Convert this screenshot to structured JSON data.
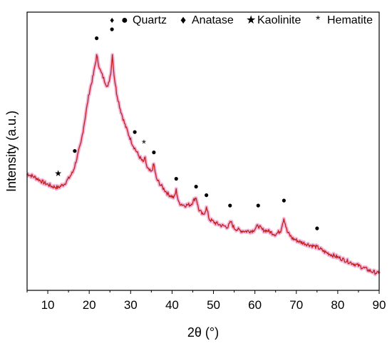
{
  "chart_data": {
    "type": "line",
    "title": "",
    "xlabel": "2θ (°)",
    "ylabel": "Intensity (a.u.)",
    "xlim": [
      5,
      90
    ],
    "ylim": [
      0,
      100
    ],
    "xticks": [
      "10",
      "20",
      "30",
      "40",
      "50",
      "60",
      "70",
      "80",
      "90"
    ],
    "yticks_shown": false,
    "grid": false,
    "series": [
      {
        "points": [
          [
            5,
            41
          ],
          [
            7,
            39.5
          ],
          [
            9,
            37.5
          ],
          [
            11,
            36
          ],
          [
            12.5,
            35.5
          ],
          [
            14,
            37
          ],
          [
            15,
            39
          ],
          [
            16,
            41.5
          ],
          [
            16.5,
            44
          ],
          [
            17,
            47
          ],
          [
            18,
            53
          ],
          [
            19,
            63
          ],
          [
            20,
            73
          ],
          [
            21,
            80
          ],
          [
            21.8,
            87.5
          ],
          [
            22.6,
            82
          ],
          [
            23.5,
            78.5
          ],
          [
            24.5,
            75
          ],
          [
            25.2,
            81
          ],
          [
            25.6,
            88
          ],
          [
            26.0,
            80
          ],
          [
            26.6,
            73
          ],
          [
            27.5,
            66.5
          ],
          [
            28.5,
            61
          ],
          [
            29.5,
            56.5
          ],
          [
            30.5,
            52.5
          ],
          [
            31,
            51
          ],
          [
            32,
            48
          ],
          [
            33,
            45.5
          ],
          [
            33.5,
            47
          ],
          [
            34,
            43
          ],
          [
            35,
            41.5
          ],
          [
            35.6,
            44.8
          ],
          [
            36.2,
            39
          ],
          [
            37.5,
            36
          ],
          [
            39,
            33
          ],
          [
            40.5,
            31.5
          ],
          [
            41,
            34.5
          ],
          [
            41.6,
            29.5
          ],
          [
            43,
            28.5
          ],
          [
            44.5,
            28.8
          ],
          [
            45.8,
            31.7
          ],
          [
            46.4,
            27
          ],
          [
            47.5,
            24.5
          ],
          [
            48.3,
            27.5
          ],
          [
            49,
            23
          ],
          [
            50.5,
            21.5
          ],
          [
            52,
            20.5
          ],
          [
            53.5,
            20
          ],
          [
            54.2,
            22
          ],
          [
            55,
            19.5
          ],
          [
            56.5,
            18.5
          ],
          [
            58,
            18.3
          ],
          [
            59.5,
            18.5
          ],
          [
            60.8,
            20.5
          ],
          [
            61.8,
            18.8
          ],
          [
            63,
            18.5
          ],
          [
            65,
            17
          ],
          [
            66.2,
            18.5
          ],
          [
            67,
            23.5
          ],
          [
            67.8,
            18
          ],
          [
            69,
            15.5
          ],
          [
            71,
            14
          ],
          [
            73,
            13
          ],
          [
            75,
            12
          ],
          [
            77,
            10
          ],
          [
            80,
            8
          ],
          [
            83,
            6
          ],
          [
            86,
            4
          ],
          [
            88,
            2.5
          ],
          [
            90,
            1.5
          ]
        ]
      }
    ],
    "markers": [
      {
        "phase": "Quartz",
        "symbol": "●",
        "x": 16.5,
        "y": 49
      },
      {
        "phase": "Quartz",
        "symbol": "●",
        "x": 21.8,
        "y": 93.5
      },
      {
        "phase": "Quartz",
        "symbol": "●",
        "x": 25.5,
        "y": 97
      },
      {
        "phase": "Anatase",
        "symbol": "♦",
        "x": 25.5,
        "y": 100.5
      },
      {
        "phase": "Quartz",
        "symbol": "●",
        "x": 31.0,
        "y": 56.5
      },
      {
        "phase": "Hematite",
        "symbol": "*",
        "x": 33.2,
        "y": 51.5
      },
      {
        "phase": "Quartz",
        "symbol": "●",
        "x": 35.6,
        "y": 48.5
      },
      {
        "phase": "Quartz",
        "symbol": "●",
        "x": 41.0,
        "y": 38
      },
      {
        "phase": "Quartz",
        "symbol": "●",
        "x": 45.8,
        "y": 35
      },
      {
        "phase": "Quartz",
        "symbol": "●",
        "x": 48.3,
        "y": 31.5
      },
      {
        "phase": "Quartz",
        "symbol": "●",
        "x": 54.0,
        "y": 27.5
      },
      {
        "phase": "Quartz",
        "symbol": "●",
        "x": 60.8,
        "y": 27.5
      },
      {
        "phase": "Quartz",
        "symbol": "●",
        "x": 67.0,
        "y": 29.5
      },
      {
        "phase": "Quartz",
        "symbol": "●",
        "x": 75.0,
        "y": 18.5
      },
      {
        "phase": "Kaolinite",
        "symbol": "★",
        "x": 12.5,
        "y": 40
      }
    ],
    "legend": {
      "placement": "top",
      "items": [
        {
          "symbol": "●",
          "label": "Quartz"
        },
        {
          "symbol": "♦",
          "label": "Anatase"
        },
        {
          "symbol": "★",
          "label": "Kaolinite"
        },
        {
          "symbol": "*",
          "label": "Hematite"
        }
      ]
    },
    "colors": {
      "line": "#c0201c",
      "halo": "#f2b8dc",
      "axis": "#000000"
    }
  }
}
